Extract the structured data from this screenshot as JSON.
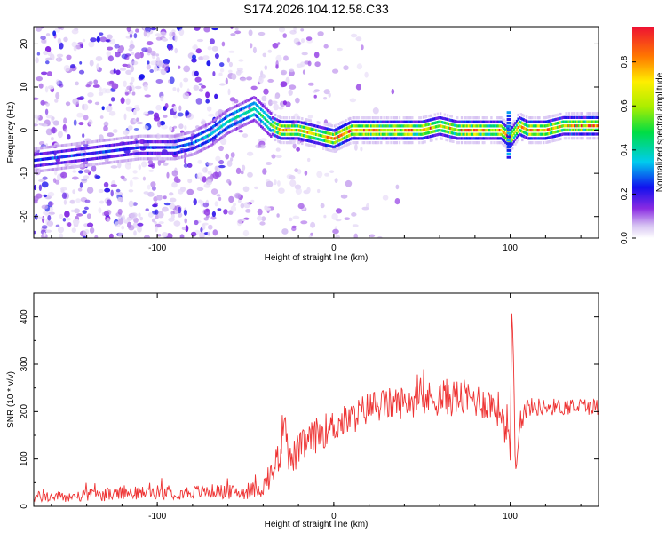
{
  "title": "S174.2026.104.12.58.C33",
  "chart_data": [
    {
      "type": "heatmap",
      "xlabel": "Height of straight line (km)",
      "ylabel": "Frequency (Hz)",
      "xlim": [
        -170,
        150
      ],
      "ylim": [
        -25,
        24
      ],
      "x_ticks": [
        -100,
        0,
        100
      ],
      "x_tick_labels": [
        "-100",
        "0",
        "100"
      ],
      "y_ticks": [
        -20,
        -10,
        0,
        10,
        20
      ],
      "y_tick_labels": [
        "-20",
        "-10",
        "0",
        "10",
        "20"
      ],
      "colorbar": {
        "label": "Normalized spectral amplitude",
        "range": [
          0,
          0.96
        ],
        "ticks": [
          0.0,
          0.2,
          0.4,
          0.6,
          0.8
        ],
        "tick_labels": [
          "0.0",
          "0.2",
          "0.4",
          "0.6",
          "0.8"
        ]
      },
      "ridge": {
        "x": [
          -170,
          -150,
          -130,
          -110,
          -100,
          -90,
          -80,
          -70,
          -60,
          -50,
          -45,
          -40,
          -35,
          -30,
          -20,
          -10,
          0,
          5,
          10,
          20,
          30,
          40,
          50,
          60,
          70,
          80,
          90,
          95,
          100,
          105,
          110,
          120,
          130,
          140,
          150
        ],
        "y": [
          -7,
          -6,
          -5,
          -4,
          -4,
          -4,
          -3,
          -1,
          2,
          4,
          5,
          3,
          1,
          0,
          0,
          -1,
          -2,
          -1,
          0,
          0,
          0,
          0,
          0,
          1,
          0,
          0,
          0,
          0,
          -2,
          1,
          0,
          0,
          1,
          1,
          1
        ]
      }
    },
    {
      "type": "line",
      "xlabel": "Height of straight line (km)",
      "ylabel": "SNR (10 * v/v)",
      "xlim": [
        -170,
        150
      ],
      "ylim": [
        0,
        450
      ],
      "x_ticks": [
        -100,
        0,
        100
      ],
      "x_tick_labels": [
        "-100",
        "0",
        "100"
      ],
      "y_ticks": [
        0,
        100,
        200,
        300,
        400
      ],
      "y_tick_labels": [
        "0",
        "100",
        "200",
        "300",
        "400"
      ],
      "series": [
        {
          "name": "SNR",
          "color": "#ee3333",
          "x": [
            -170,
            -150,
            -130,
            -110,
            -100,
            -90,
            -80,
            -70,
            -60,
            -50,
            -45,
            -40,
            -35,
            -30,
            -28,
            -25,
            -20,
            -10,
            0,
            10,
            20,
            30,
            40,
            50,
            60,
            70,
            80,
            90,
            95,
            100,
            101,
            102,
            103,
            105,
            110,
            120,
            130,
            140,
            150
          ],
          "values": [
            20,
            20,
            25,
            28,
            30,
            28,
            30,
            32,
            30,
            30,
            35,
            40,
            70,
            120,
            210,
            90,
            120,
            150,
            170,
            185,
            210,
            215,
            220,
            225,
            230,
            230,
            225,
            215,
            200,
            150,
            420,
            300,
            60,
            180,
            210,
            210,
            210,
            212,
            210
          ],
          "noise": [
            12,
            12,
            14,
            14,
            15,
            14,
            15,
            15,
            15,
            16,
            18,
            20,
            28,
            40,
            30,
            40,
            35,
            38,
            35,
            35,
            35,
            35,
            35,
            36,
            40,
            40,
            38,
            36,
            40,
            60,
            20,
            40,
            20,
            30,
            20,
            18,
            18,
            18,
            18
          ]
        }
      ]
    }
  ]
}
